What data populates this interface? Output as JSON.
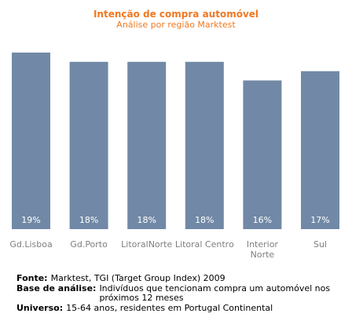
{
  "chart_data": {
    "type": "bar",
    "title": "Intenção de compra automóvel",
    "subtitle": "Análise por região Marktest",
    "categories": [
      "Gd.Lisboa",
      "Gd.Porto",
      "LitoralNorte",
      "Litoral Centro",
      "Interior Norte",
      "Sul"
    ],
    "category_lines": [
      [
        "Gd.Lisboa"
      ],
      [
        "Gd.Porto"
      ],
      [
        "LitoralNorte"
      ],
      [
        "Litoral Centro"
      ],
      [
        "Interior",
        "Norte"
      ],
      [
        "Sul"
      ]
    ],
    "values": [
      19,
      18,
      18,
      18,
      16,
      17
    ],
    "value_labels": [
      "19%",
      "18%",
      "18%",
      "18%",
      "16%",
      "17%"
    ],
    "unit": "%",
    "ylim": [
      0,
      19
    ],
    "grid": false,
    "bar_color": "#7189a6",
    "label_color": "#ffffff",
    "category_color": "#7f7f7f"
  },
  "footer": {
    "source_label": "Fonte:",
    "source_text": "Marktest, TGI (Target Group Index) 2009",
    "base_label": "Base de análise:",
    "base_text": "Indivíduos que tencionam compra um automóvel nos próximos 12 meses",
    "universe_label": "Universo:",
    "universe_text": "15-64 anos, residentes em Portugal Continental"
  }
}
